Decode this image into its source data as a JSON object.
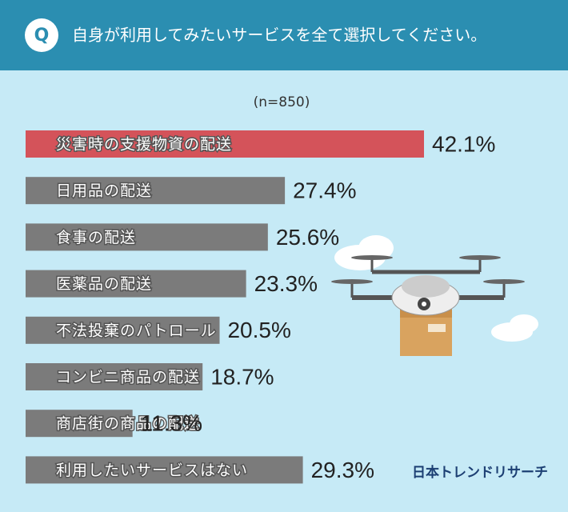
{
  "header": {
    "icon": "Q",
    "question": "自身が利用してみたいサービスを全て選択してください。"
  },
  "chart_data": {
    "type": "bar",
    "orientation": "horizontal",
    "subtitle": "(n=850)",
    "categories": [
      "災害時の支援物資の配送",
      "日用品の配送",
      "食事の配送",
      "医薬品の配送",
      "不法投棄のパトロール",
      "コンビニ商品の配送",
      "商店街の商品の配送",
      "利用したいサービスはない"
    ],
    "values": [
      42.1,
      27.4,
      25.6,
      23.3,
      20.5,
      18.7,
      11.3,
      29.3
    ],
    "value_labels": [
      "42.1%",
      "27.4%",
      "25.6%",
      "23.3%",
      "20.5%",
      "18.7%",
      "11.3%",
      "29.3%"
    ],
    "colors": [
      "#d4535a",
      "#7b7b7b",
      "#7b7b7b",
      "#7b7b7b",
      "#7b7b7b",
      "#7b7b7b",
      "#7b7b7b",
      "#7b7b7b"
    ]
  },
  "brand": "日本トレンドリサーチ"
}
